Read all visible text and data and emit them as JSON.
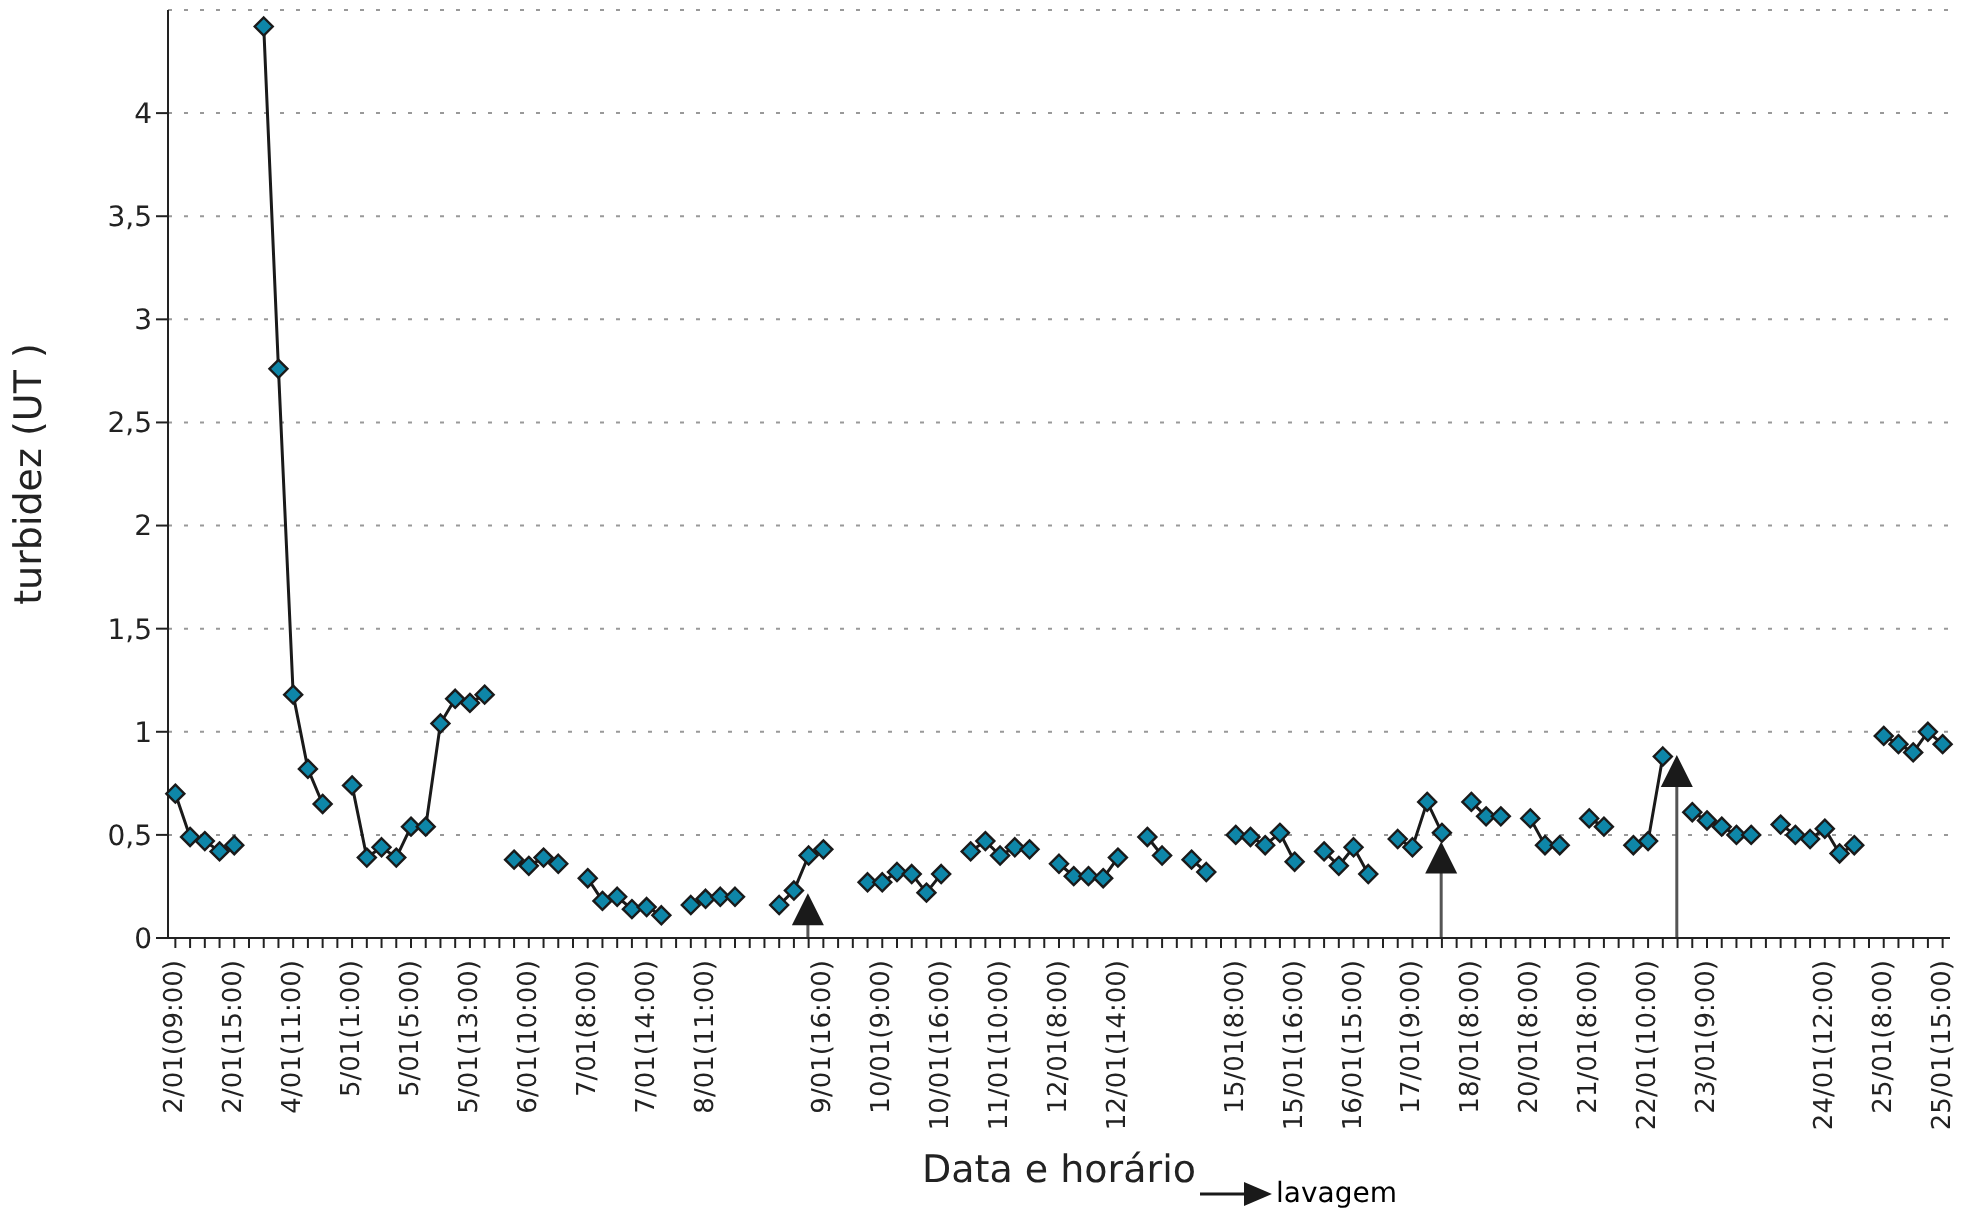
{
  "chart_data": {
    "type": "line",
    "xlabel": "Data e horário",
    "ylabel": "turbidez (UT )",
    "categories": [
      "2/01(09:00)",
      null,
      null,
      null,
      "2/01(15:00)",
      null,
      null,
      null,
      "4/01(11:00)",
      null,
      null,
      null,
      "5/01(1:00)",
      null,
      null,
      null,
      "5/01(5:00)",
      null,
      null,
      null,
      "5/01(13:00)",
      null,
      null,
      null,
      "6/01(10:00)",
      null,
      null,
      null,
      "7/01(8:00)",
      null,
      null,
      null,
      "7/01(14:00)",
      null,
      null,
      null,
      "8/01(11:00)",
      null,
      null,
      null,
      null,
      null,
      null,
      null,
      "9/01(16:00)",
      null,
      null,
      null,
      "10/01(9:00)",
      null,
      null,
      null,
      "10/01(16:00)",
      null,
      null,
      null,
      "11/01(10:00)",
      null,
      null,
      null,
      "12/01(8:00)",
      null,
      null,
      null,
      "12/01(14:00)",
      null,
      null,
      null,
      null,
      null,
      null,
      null,
      "15/01(8:00)",
      null,
      null,
      null,
      "15/01(16:00)",
      null,
      null,
      null,
      "16/01(15:00)",
      null,
      null,
      null,
      "17/01(9:00)",
      null,
      null,
      null,
      "18/01(8:00)",
      null,
      null,
      null,
      "20/01(8:00)",
      null,
      null,
      null,
      "21/01(8:00)",
      null,
      null,
      null,
      "22/01(10:00)",
      null,
      null,
      null,
      "23/01(9:00)",
      null,
      null,
      null,
      null,
      null,
      null,
      null,
      "24/01(12:00)",
      null,
      null,
      null,
      "25/01(8:00)",
      null,
      null,
      null,
      "25/01(15:00)"
    ],
    "series": [
      {
        "color": "#0e86a8",
        "values": [
          0.7,
          0.49,
          0.47,
          0.42,
          0.45,
          null,
          4.42,
          2.76,
          1.18,
          0.82,
          0.65,
          null,
          0.74,
          0.39,
          0.44,
          0.39,
          0.54,
          0.54,
          1.04,
          1.16,
          1.14,
          1.18,
          null,
          0.38,
          0.35,
          0.39,
          0.36,
          null,
          0.29,
          0.18,
          0.2,
          0.14,
          0.15,
          0.11,
          null,
          0.16,
          0.19,
          0.2,
          0.2,
          null,
          null,
          0.16,
          0.23,
          0.4,
          0.43,
          null,
          null,
          0.27,
          0.27,
          0.32,
          0.31,
          0.22,
          0.31,
          null,
          0.42,
          0.47,
          0.4,
          0.44,
          0.43,
          null,
          0.36,
          0.3,
          0.3,
          0.29,
          0.39,
          null,
          0.49,
          0.4,
          null,
          0.38,
          0.32,
          null,
          0.5,
          0.49,
          0.45,
          0.51,
          0.37,
          null,
          0.42,
          0.35,
          0.44,
          0.31,
          null,
          0.48,
          0.44,
          0.66,
          0.51,
          null,
          0.66,
          0.59,
          0.59,
          null,
          0.58,
          0.45,
          0.45,
          null,
          0.58,
          0.54,
          null,
          0.45,
          0.47,
          0.88,
          null,
          0.61,
          0.57,
          0.54,
          0.5,
          0.5,
          null,
          0.55,
          0.5,
          0.48,
          0.53,
          0.41,
          0.45,
          null,
          0.98,
          0.94,
          0.9,
          1.0,
          0.94
        ]
      },
      {
        "name": "lavagem",
        "type": "scatter",
        "marker": "triangle",
        "color": "#1a1a1a",
        "values": [
          null,
          null,
          null,
          null,
          null,
          null,
          null,
          null,
          null,
          null,
          null,
          null,
          null,
          null,
          null,
          null,
          null,
          null,
          null,
          null,
          null,
          null,
          null,
          null,
          null,
          null,
          null,
          null,
          null,
          null,
          null,
          null,
          null,
          null,
          null,
          null,
          null,
          null,
          null,
          null,
          null,
          null,
          null,
          0.14,
          null,
          null,
          null,
          null,
          null,
          null,
          null,
          null,
          null,
          null,
          null,
          null,
          null,
          null,
          null,
          null,
          null,
          null,
          null,
          null,
          null,
          null,
          null,
          null,
          null,
          null,
          null,
          null,
          null,
          null,
          null,
          null,
          null,
          null,
          null,
          null,
          null,
          null,
          null,
          null,
          null,
          null,
          0.39,
          null,
          null,
          null,
          null,
          null,
          null,
          null,
          null,
          null,
          null,
          null,
          null,
          null,
          null,
          null,
          0.81,
          null,
          null,
          null,
          null,
          null,
          null,
          null,
          null,
          null,
          null,
          null,
          null,
          null,
          null,
          null,
          null,
          null,
          null
        ],
        "errors": [
          null,
          null,
          null,
          null,
          null,
          null,
          null,
          null,
          null,
          null,
          null,
          null,
          null,
          null,
          null,
          null,
          null,
          null,
          null,
          null,
          null,
          null,
          null,
          null,
          null,
          null,
          null,
          null,
          null,
          null,
          null,
          null,
          null,
          null,
          null,
          null,
          null,
          null,
          null,
          null,
          null,
          null,
          null,
          [
            0,
            0.14
          ],
          null,
          null,
          null,
          null,
          null,
          null,
          null,
          null,
          null,
          null,
          null,
          null,
          null,
          null,
          null,
          null,
          null,
          null,
          null,
          null,
          null,
          null,
          null,
          null,
          null,
          null,
          null,
          null,
          null,
          null,
          null,
          null,
          null,
          null,
          null,
          null,
          null,
          null,
          null,
          null,
          null,
          null,
          [
            0,
            0.39
          ],
          null,
          null,
          null,
          null,
          null,
          null,
          null,
          null,
          null,
          null,
          null,
          null,
          null,
          null,
          null,
          [
            0,
            0.81
          ],
          null,
          null,
          null,
          null,
          null,
          null,
          null,
          null,
          null,
          null,
          null,
          null,
          null,
          null,
          null,
          null,
          null,
          null
        ]
      }
    ],
    "ylim": [
      0,
      4.5
    ],
    "yticks": [
      0,
      {
        "value": 0.5,
        "label": "0,5"
      },
      1,
      {
        "value": 1.5,
        "label": "1,5"
      },
      2,
      {
        "value": 2.5,
        "label": "2,5"
      },
      3,
      {
        "value": 3.5,
        "label": "3,5"
      },
      4
    ],
    "grid": "y",
    "legend": "bottom",
    "marker": "diamond",
    "line_style": "solid"
  }
}
